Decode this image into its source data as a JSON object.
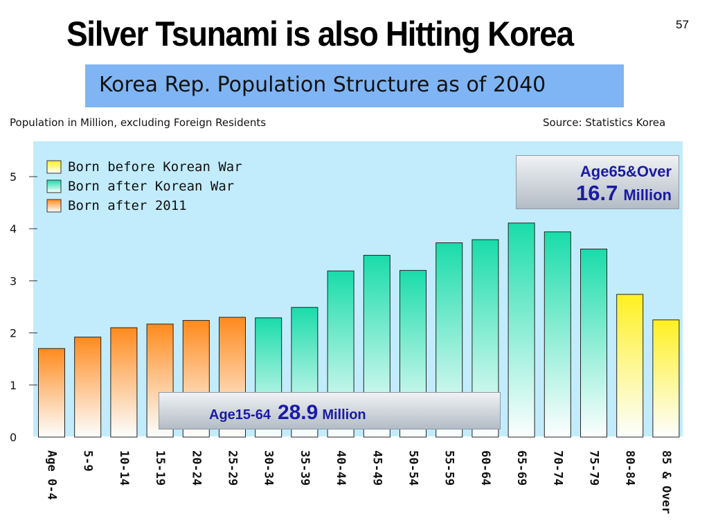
{
  "slide": {
    "title": "Silver Tsunami is also Hitting Korea",
    "page_number": "57",
    "chart_title": "Korea Rep. Population Structure as of 2040",
    "units_note": "Population in Million, excluding Foreign Residents",
    "source": "Source: Statistics Korea"
  },
  "callouts": {
    "elderly": {
      "label": "Age65&Over",
      "value": "16.7",
      "unit": "Million"
    },
    "working": {
      "label": "Age15-64",
      "value": "28.9",
      "unit": "Million"
    }
  },
  "colors": {
    "plot_background": "#c2ecfb",
    "born_before_war": "#fff020",
    "born_after_war": "#19dcaa",
    "born_after_2011": "#ff8a1c",
    "banner": "#7fb5f4",
    "callout_text": "#1a1aa6"
  },
  "chart_data": {
    "type": "bar",
    "title": "Korea Rep. Population Structure as of 2040",
    "xlabel": "",
    "ylabel": "",
    "ylim": [
      0,
      5.5
    ],
    "yticks": [
      0,
      1,
      2,
      3,
      4,
      5
    ],
    "grid": false,
    "legend_position": "top-left",
    "categories": [
      "Age 0-4",
      "5-9",
      "10-14",
      "15-19",
      "20-24",
      "25-29",
      "30-34",
      "35-39",
      "40-44",
      "45-49",
      "50-54",
      "55-59",
      "60-64",
      "65-69",
      "70-74",
      "75-79",
      "80-84",
      "85 & Over"
    ],
    "values": [
      1.7,
      1.92,
      2.1,
      2.17,
      2.24,
      2.3,
      2.29,
      2.49,
      3.19,
      3.49,
      3.2,
      3.73,
      3.79,
      4.11,
      3.94,
      3.61,
      2.74,
      2.25
    ],
    "groups": [
      "born_after_2011",
      "born_after_2011",
      "born_after_2011",
      "born_after_2011",
      "born_after_2011",
      "born_after_2011",
      "born_after_war",
      "born_after_war",
      "born_after_war",
      "born_after_war",
      "born_after_war",
      "born_after_war",
      "born_after_war",
      "born_after_war",
      "born_after_war",
      "born_after_war",
      "born_before_war",
      "born_before_war"
    ],
    "legend": [
      {
        "key": "born_before_war",
        "label": "Born before Korean War"
      },
      {
        "key": "born_after_war",
        "label": "Born after Korean War"
      },
      {
        "key": "born_after_2011",
        "label": "Born after 2011"
      }
    ]
  }
}
